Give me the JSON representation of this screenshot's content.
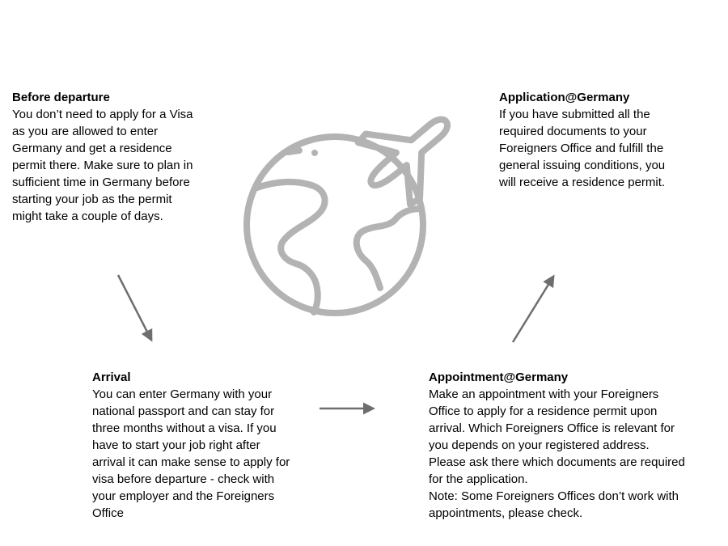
{
  "steps": {
    "before_departure": {
      "title": "Before departure",
      "text": "You don’t need to apply for a Visa\nas you are allowed to enter\nGermany and get a residence\npermit there. Make sure to plan in\nsufficient time in Germany before\nstarting your job as the permit\nmight take a couple of days."
    },
    "arrival": {
      "title": "Arrival",
      "text": "You can enter Germany with your\nnational passport and can stay for\nthree months without a visa. If you\nhave to start your job right after\narrival it can make sense to apply for\nvisa before departure  - check with\nyour employer and the Foreigners\nOffice"
    },
    "appointment": {
      "title": "Appointment@Germany",
      "text": "Make an appointment with your Foreigners\nOffice to apply for a residence permit upon\narrival. Which Foreigners Office is relevant for\nyou depends on your registered address.\nPlease ask there which documents are required\nfor the application.\nNote: Some Foreigners Offices don’t work with\nappointments, please check."
    },
    "application": {
      "title": "Application@Germany",
      "text": "If you have submitted all the\nrequired documents to your\nForeigners Office and fulfill the\ngeneral issuing conditions, you\nwill receive a residence permit."
    }
  },
  "colors": {
    "icon": "#b3b3b3",
    "arrow": "#6e6e6e"
  },
  "icons": {
    "center": "globe-with-airplane-icon"
  }
}
